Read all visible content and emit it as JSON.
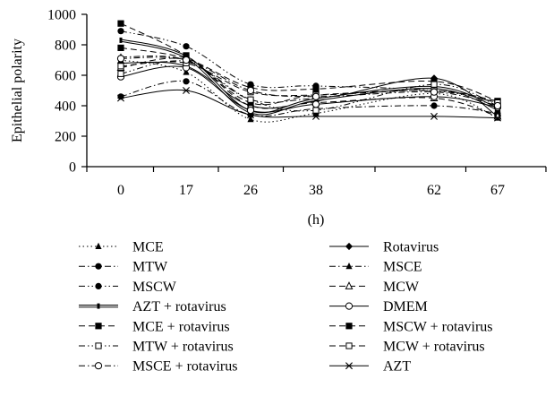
{
  "chart_data": {
    "type": "line",
    "title": "",
    "xlabel": "(h)",
    "ylabel": "Epithelial polarity",
    "ylim": [
      0,
      1000
    ],
    "yticks": [
      0,
      200,
      400,
      600,
      800,
      1000
    ],
    "categories": [
      "0",
      "17",
      "26",
      "38",
      "62",
      "67"
    ],
    "grid": false,
    "legend_position": "bottom",
    "series": [
      {
        "name": "MCE",
        "style": "dotted",
        "marker": "triangle-filled",
        "values": [
          700,
          620,
          310,
          350,
          480,
          320
        ]
      },
      {
        "name": "Rotavirus",
        "style": "solid",
        "marker": "diamond-filled",
        "values": [
          680,
          660,
          400,
          430,
          580,
          330
        ]
      },
      {
        "name": "MTW",
        "style": "dashdot",
        "marker": "circle-filled",
        "values": [
          460,
          560,
          340,
          380,
          400,
          350
        ]
      },
      {
        "name": "MSCE",
        "style": "dashdot",
        "marker": "triangle-filled",
        "values": [
          720,
          700,
          440,
          450,
          520,
          380
        ]
      },
      {
        "name": "MSCW",
        "style": "dashdotdot",
        "marker": "circle-filled",
        "values": [
          890,
          790,
          540,
          530,
          500,
          420
        ]
      },
      {
        "name": "MCW",
        "style": "dashed",
        "marker": "triangle-open",
        "values": [
          650,
          700,
          400,
          420,
          450,
          330
        ]
      },
      {
        "name": "AZT + rotavirus",
        "style": "double",
        "marker": "bar",
        "values": [
          830,
          720,
          360,
          440,
          520,
          380
        ]
      },
      {
        "name": "DMEM",
        "style": "solid",
        "marker": "circle-open",
        "values": [
          590,
          650,
          370,
          410,
          460,
          390
        ]
      },
      {
        "name": "MCE + rotavirus",
        "style": "dashed",
        "marker": "square-filled",
        "values": [
          940,
          730,
          420,
          470,
          500,
          430
        ]
      },
      {
        "name": "MSCW + rotavirus",
        "style": "dashed",
        "marker": "square-filled",
        "values": [
          780,
          710,
          520,
          510,
          560,
          430
        ]
      },
      {
        "name": "MTW + rotavirus",
        "style": "dashdotdot",
        "marker": "square-open",
        "values": [
          610,
          690,
          440,
          370,
          540,
          400
        ]
      },
      {
        "name": "MCW + rotavirus",
        "style": "dashed",
        "marker": "square-open",
        "values": [
          660,
          680,
          490,
          470,
          500,
          420
        ]
      },
      {
        "name": "MSCE + rotavirus",
        "style": "dashdot",
        "marker": "circle-open",
        "values": [
          710,
          700,
          500,
          460,
          490,
          400
        ]
      },
      {
        "name": "AZT",
        "style": "solid",
        "marker": "asterisk",
        "values": [
          450,
          500,
          340,
          330,
          330,
          320
        ]
      }
    ]
  }
}
